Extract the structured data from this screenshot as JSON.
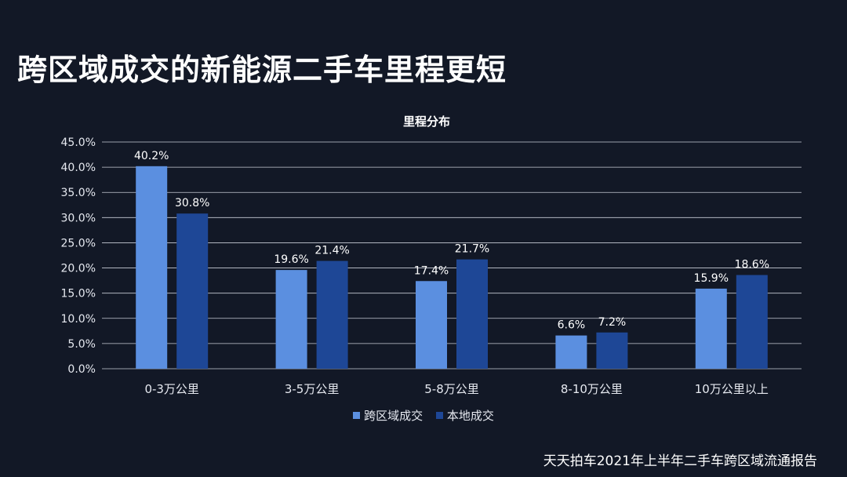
{
  "header": {
    "title": "跨区域成交的新能源二手车里程更短"
  },
  "footer": {
    "source": "天天拍车2021年上半年二手车跨区域流通报告"
  },
  "colors": {
    "background": "#121826",
    "series_cross": "#5b8fe0",
    "series_local": "#1e4796",
    "grid": "#c8ccd6"
  },
  "chart_data": {
    "type": "bar",
    "title": "里程分布",
    "categories": [
      "0-3万公里",
      "3-5万公里",
      "5-8万公里",
      "8-10万公里",
      "10万公里以上"
    ],
    "series": [
      {
        "name": "跨区域成交",
        "values": [
          40.2,
          19.6,
          17.4,
          6.6,
          15.9
        ],
        "labels": [
          "40.2%",
          "19.6%",
          "17.4%",
          "6.6%",
          "15.9%"
        ]
      },
      {
        "name": "本地成交",
        "values": [
          30.8,
          21.4,
          21.7,
          7.2,
          18.6
        ],
        "labels": [
          "30.8%",
          "21.4%",
          "21.7%",
          "7.2%",
          "18.6%"
        ]
      }
    ],
    "ylim": [
      0,
      45
    ],
    "yticks": [
      "0.0%",
      "5.0%",
      "10.0%",
      "15.0%",
      "20.0%",
      "25.0%",
      "30.0%",
      "35.0%",
      "40.0%",
      "45.0%"
    ],
    "ytick_values": [
      0,
      5,
      10,
      15,
      20,
      25,
      30,
      35,
      40,
      45
    ],
    "grid": true,
    "legend_position": "bottom"
  }
}
